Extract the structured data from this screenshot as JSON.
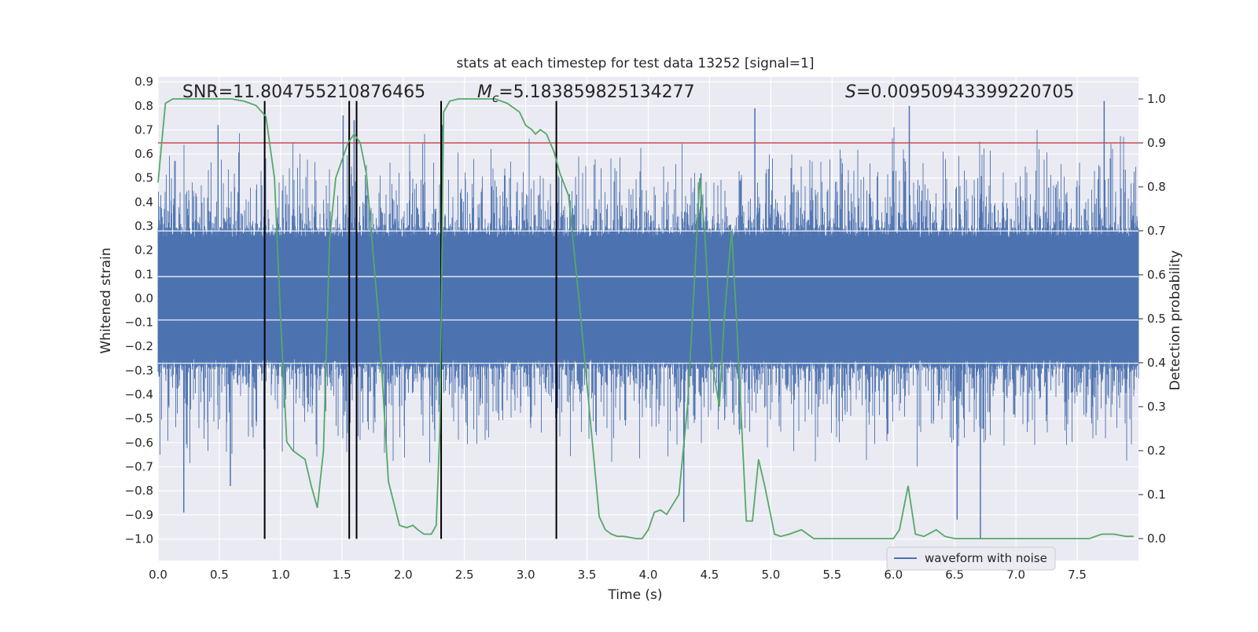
{
  "chart_data": {
    "type": "line",
    "title": "stats at each timestep for test data 13252 [signal=1]",
    "xlabel": "Time (s)",
    "ylabel_left": "Whitened strain",
    "ylabel_right": "Detection probability",
    "xlim": [
      0,
      8
    ],
    "ylim_left": [
      -1.09,
      0.92
    ],
    "ylim_right": [
      -0.05,
      1.05
    ],
    "x_ticks": [
      0.0,
      0.5,
      1.0,
      1.5,
      2.0,
      2.5,
      3.0,
      3.5,
      4.0,
      4.5,
      5.0,
      5.5,
      6.0,
      6.5,
      7.0,
      7.5
    ],
    "x_tick_labels": [
      "0.0",
      "0.5",
      "1.0",
      "1.5",
      "2.0",
      "2.5",
      "3.0",
      "3.5",
      "4.0",
      "4.5",
      "5.0",
      "5.5",
      "6.0",
      "6.5",
      "7.0",
      "7.5"
    ],
    "y_left_ticks": [
      0.9,
      0.8,
      0.7,
      0.6,
      0.5,
      0.4,
      0.3,
      0.2,
      0.1,
      0.0,
      -0.1,
      -0.2,
      -0.3,
      -0.4,
      -0.5,
      -0.6,
      -0.7,
      -0.8,
      -0.9,
      -1.0
    ],
    "y_left_tick_labels": [
      "0.9",
      "0.8",
      "0.7",
      "0.6",
      "0.5",
      "0.4",
      "0.3",
      "0.2",
      "0.1",
      "0.0",
      "−0.1",
      "−0.2",
      "−0.3",
      "−0.4",
      "−0.5",
      "−0.6",
      "−0.7",
      "−0.8",
      "−0.9",
      "−1.0"
    ],
    "y_right_ticks": [
      1.0,
      0.9,
      0.8,
      0.7,
      0.6,
      0.5,
      0.4,
      0.3,
      0.2,
      0.1,
      0.0
    ],
    "y_right_tick_labels": [
      "1.0",
      "0.9",
      "0.8",
      "0.7",
      "0.6",
      "0.5",
      "0.4",
      "0.3",
      "0.2",
      "0.1",
      "0.0"
    ],
    "annotations": {
      "snr": "SNR=11.804755210876465",
      "mc_symbol": "M",
      "mc_sub": "c",
      "mc_value": "=5.183859825134277",
      "s_symbol": "S",
      "s_value": "=0.00950943399220705"
    },
    "threshold": 0.9,
    "vertical_lines_x": [
      0.87,
      1.56,
      1.62,
      2.31,
      3.25
    ],
    "legend": [
      {
        "label": "waveform with noise",
        "color": "#4c72b0"
      }
    ],
    "series": [
      {
        "name": "waveform with noise",
        "axis": "left",
        "color": "#4c72b0",
        "style": "noise",
        "seed": 13252,
        "core_amplitude": 0.28,
        "peak_range": [
          0.36,
          0.72
        ],
        "spikes": [
          {
            "x": 0.21,
            "y": -0.89
          },
          {
            "x": 0.59,
            "y": -0.78
          },
          {
            "x": 0.49,
            "y": 0.72
          },
          {
            "x": 1.51,
            "y": 0.76
          },
          {
            "x": 1.6,
            "y": 0.74
          },
          {
            "x": 2.32,
            "y": 0.72
          },
          {
            "x": 4.29,
            "y": -0.93
          },
          {
            "x": 4.43,
            "y": 0.52
          },
          {
            "x": 4.87,
            "y": 0.79
          },
          {
            "x": 6.13,
            "y": 0.8
          },
          {
            "x": 6.52,
            "y": -0.92
          },
          {
            "x": 6.71,
            "y": -1.0
          },
          {
            "x": 7.72,
            "y": 0.82
          }
        ]
      },
      {
        "name": "detection probability",
        "axis": "right",
        "color": "#55a868",
        "x": [
          0.0,
          0.06,
          0.12,
          0.2,
          0.3,
          0.4,
          0.5,
          0.6,
          0.7,
          0.8,
          0.88,
          0.95,
          1.0,
          1.05,
          1.1,
          1.2,
          1.25,
          1.3,
          1.35,
          1.4,
          1.45,
          1.5,
          1.55,
          1.6,
          1.65,
          1.7,
          1.8,
          1.88,
          1.97,
          2.03,
          2.08,
          2.12,
          2.17,
          2.23,
          2.27,
          2.3,
          2.33,
          2.38,
          2.45,
          2.55,
          2.65,
          2.75,
          2.85,
          2.95,
          3.0,
          3.05,
          3.08,
          3.12,
          3.17,
          3.23,
          3.28,
          3.35,
          3.45,
          3.55,
          3.6,
          3.65,
          3.7,
          3.75,
          3.8,
          3.9,
          3.95,
          4.0,
          4.05,
          4.1,
          4.15,
          4.25,
          4.32,
          4.38,
          4.42,
          4.46,
          4.52,
          4.58,
          4.62,
          4.68,
          4.72,
          4.8,
          4.85,
          4.9,
          4.95,
          5.03,
          5.08,
          5.15,
          5.25,
          5.35,
          5.45,
          5.55,
          5.7,
          5.85,
          6.0,
          6.05,
          6.12,
          6.18,
          6.25,
          6.35,
          6.42,
          6.5,
          6.6,
          6.7,
          6.9,
          7.2,
          7.6,
          7.7,
          7.8,
          7.9,
          7.96
        ],
        "y": [
          0.81,
          0.99,
          1.0,
          1.0,
          1.0,
          1.0,
          1.0,
          1.0,
          0.995,
          0.985,
          0.96,
          0.82,
          0.5,
          0.22,
          0.2,
          0.18,
          0.12,
          0.07,
          0.2,
          0.68,
          0.82,
          0.86,
          0.9,
          0.92,
          0.9,
          0.83,
          0.5,
          0.13,
          0.03,
          0.025,
          0.03,
          0.02,
          0.01,
          0.01,
          0.03,
          0.25,
          0.97,
          0.995,
          1.0,
          1.0,
          1.0,
          1.0,
          0.99,
          0.97,
          0.94,
          0.93,
          0.92,
          0.93,
          0.92,
          0.88,
          0.83,
          0.78,
          0.5,
          0.2,
          0.05,
          0.02,
          0.01,
          0.005,
          0.005,
          0.0,
          0.0,
          0.02,
          0.06,
          0.065,
          0.055,
          0.1,
          0.3,
          0.6,
          0.82,
          0.7,
          0.4,
          0.3,
          0.5,
          0.7,
          0.5,
          0.04,
          0.04,
          0.18,
          0.12,
          0.01,
          0.005,
          0.01,
          0.02,
          0.0,
          0.0,
          0.0,
          0.0,
          0.0,
          0.0,
          0.02,
          0.12,
          0.01,
          0.005,
          0.02,
          0.005,
          0.0,
          0.0,
          0.0,
          0.0,
          0.0,
          0.0,
          0.01,
          0.01,
          0.005,
          0.005
        ]
      }
    ]
  }
}
